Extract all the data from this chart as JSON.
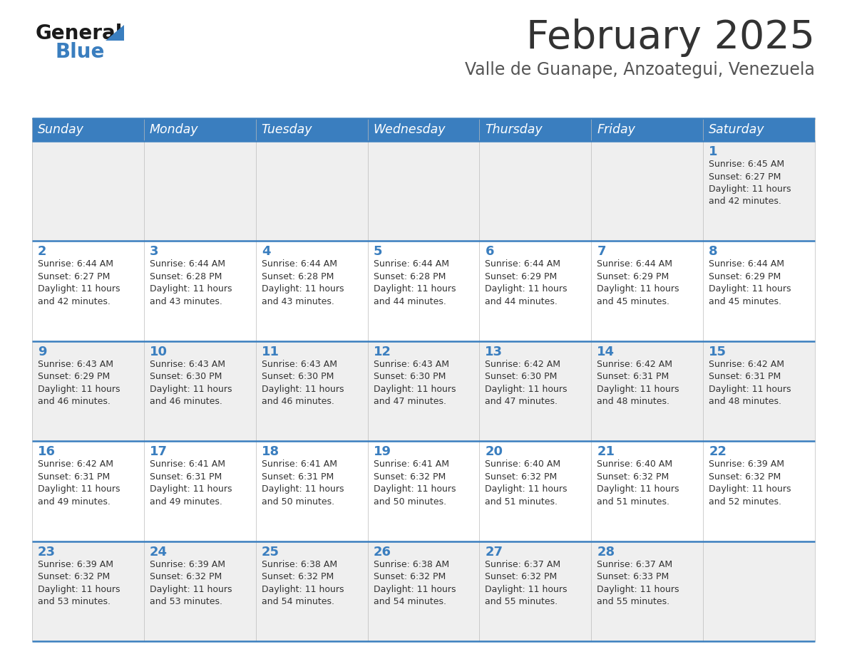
{
  "title": "February 2025",
  "subtitle": "Valle de Guanape, Anzoategui, Venezuela",
  "days_of_week": [
    "Sunday",
    "Monday",
    "Tuesday",
    "Wednesday",
    "Thursday",
    "Friday",
    "Saturday"
  ],
  "header_bg": "#3a7ebf",
  "header_text": "#ffffff",
  "row_bg_odd": "#efefef",
  "row_bg_even": "#ffffff",
  "separator_color": "#3a7ebf",
  "title_color": "#333333",
  "subtitle_color": "#555555",
  "day_number_color": "#3a7ebf",
  "cell_text_color": "#333333",
  "calendar": [
    [
      {
        "day": null,
        "sunrise": null,
        "sunset": null,
        "daylight": null
      },
      {
        "day": null,
        "sunrise": null,
        "sunset": null,
        "daylight": null
      },
      {
        "day": null,
        "sunrise": null,
        "sunset": null,
        "daylight": null
      },
      {
        "day": null,
        "sunrise": null,
        "sunset": null,
        "daylight": null
      },
      {
        "day": null,
        "sunrise": null,
        "sunset": null,
        "daylight": null
      },
      {
        "day": null,
        "sunrise": null,
        "sunset": null,
        "daylight": null
      },
      {
        "day": 1,
        "sunrise": "6:45 AM",
        "sunset": "6:27 PM",
        "daylight": "11 hours and 42 minutes."
      }
    ],
    [
      {
        "day": 2,
        "sunrise": "6:44 AM",
        "sunset": "6:27 PM",
        "daylight": "11 hours and 42 minutes."
      },
      {
        "day": 3,
        "sunrise": "6:44 AM",
        "sunset": "6:28 PM",
        "daylight": "11 hours and 43 minutes."
      },
      {
        "day": 4,
        "sunrise": "6:44 AM",
        "sunset": "6:28 PM",
        "daylight": "11 hours and 43 minutes."
      },
      {
        "day": 5,
        "sunrise": "6:44 AM",
        "sunset": "6:28 PM",
        "daylight": "11 hours and 44 minutes."
      },
      {
        "day": 6,
        "sunrise": "6:44 AM",
        "sunset": "6:29 PM",
        "daylight": "11 hours and 44 minutes."
      },
      {
        "day": 7,
        "sunrise": "6:44 AM",
        "sunset": "6:29 PM",
        "daylight": "11 hours and 45 minutes."
      },
      {
        "day": 8,
        "sunrise": "6:44 AM",
        "sunset": "6:29 PM",
        "daylight": "11 hours and 45 minutes."
      }
    ],
    [
      {
        "day": 9,
        "sunrise": "6:43 AM",
        "sunset": "6:29 PM",
        "daylight": "11 hours and 46 minutes."
      },
      {
        "day": 10,
        "sunrise": "6:43 AM",
        "sunset": "6:30 PM",
        "daylight": "11 hours and 46 minutes."
      },
      {
        "day": 11,
        "sunrise": "6:43 AM",
        "sunset": "6:30 PM",
        "daylight": "11 hours and 46 minutes."
      },
      {
        "day": 12,
        "sunrise": "6:43 AM",
        "sunset": "6:30 PM",
        "daylight": "11 hours and 47 minutes."
      },
      {
        "day": 13,
        "sunrise": "6:42 AM",
        "sunset": "6:30 PM",
        "daylight": "11 hours and 47 minutes."
      },
      {
        "day": 14,
        "sunrise": "6:42 AM",
        "sunset": "6:31 PM",
        "daylight": "11 hours and 48 minutes."
      },
      {
        "day": 15,
        "sunrise": "6:42 AM",
        "sunset": "6:31 PM",
        "daylight": "11 hours and 48 minutes."
      }
    ],
    [
      {
        "day": 16,
        "sunrise": "6:42 AM",
        "sunset": "6:31 PM",
        "daylight": "11 hours and 49 minutes."
      },
      {
        "day": 17,
        "sunrise": "6:41 AM",
        "sunset": "6:31 PM",
        "daylight": "11 hours and 49 minutes."
      },
      {
        "day": 18,
        "sunrise": "6:41 AM",
        "sunset": "6:31 PM",
        "daylight": "11 hours and 50 minutes."
      },
      {
        "day": 19,
        "sunrise": "6:41 AM",
        "sunset": "6:32 PM",
        "daylight": "11 hours and 50 minutes."
      },
      {
        "day": 20,
        "sunrise": "6:40 AM",
        "sunset": "6:32 PM",
        "daylight": "11 hours and 51 minutes."
      },
      {
        "day": 21,
        "sunrise": "6:40 AM",
        "sunset": "6:32 PM",
        "daylight": "11 hours and 51 minutes."
      },
      {
        "day": 22,
        "sunrise": "6:39 AM",
        "sunset": "6:32 PM",
        "daylight": "11 hours and 52 minutes."
      }
    ],
    [
      {
        "day": 23,
        "sunrise": "6:39 AM",
        "sunset": "6:32 PM",
        "daylight": "11 hours and 53 minutes."
      },
      {
        "day": 24,
        "sunrise": "6:39 AM",
        "sunset": "6:32 PM",
        "daylight": "11 hours and 53 minutes."
      },
      {
        "day": 25,
        "sunrise": "6:38 AM",
        "sunset": "6:32 PM",
        "daylight": "11 hours and 54 minutes."
      },
      {
        "day": 26,
        "sunrise": "6:38 AM",
        "sunset": "6:32 PM",
        "daylight": "11 hours and 54 minutes."
      },
      {
        "day": 27,
        "sunrise": "6:37 AM",
        "sunset": "6:32 PM",
        "daylight": "11 hours and 55 minutes."
      },
      {
        "day": 28,
        "sunrise": "6:37 AM",
        "sunset": "6:33 PM",
        "daylight": "11 hours and 55 minutes."
      },
      {
        "day": null,
        "sunrise": null,
        "sunset": null,
        "daylight": null
      }
    ]
  ]
}
